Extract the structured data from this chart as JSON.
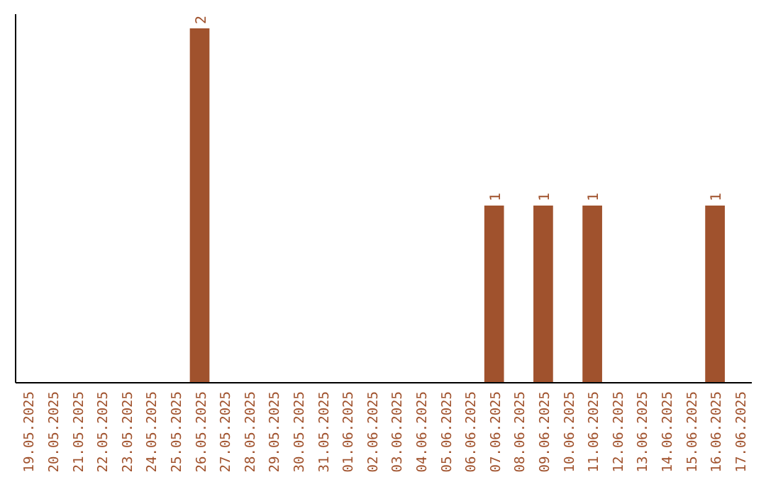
{
  "chart_data": {
    "type": "bar",
    "categories": [
      "19.05.2025",
      "20.05.2025",
      "21.05.2025",
      "22.05.2025",
      "23.05.2025",
      "24.05.2025",
      "25.05.2025",
      "26.05.2025",
      "27.05.2025",
      "28.05.2025",
      "29.05.2025",
      "30.05.2025",
      "31.05.2025",
      "01.06.2025",
      "02.06.2025",
      "03.06.2025",
      "04.06.2025",
      "05.06.2025",
      "06.06.2025",
      "07.06.2025",
      "08.06.2025",
      "09.06.2025",
      "10.06.2025",
      "11.06.2025",
      "12.06.2025",
      "13.06.2025",
      "14.06.2025",
      "15.06.2025",
      "16.06.2025",
      "17.06.2025"
    ],
    "values": [
      0,
      0,
      0,
      0,
      0,
      0,
      0,
      2,
      0,
      0,
      0,
      0,
      0,
      0,
      0,
      0,
      0,
      0,
      0,
      1,
      0,
      1,
      0,
      1,
      0,
      0,
      0,
      0,
      1,
      0
    ],
    "value_labels": [
      null,
      null,
      null,
      null,
      null,
      null,
      null,
      "2",
      null,
      null,
      null,
      null,
      null,
      null,
      null,
      null,
      null,
      null,
      null,
      "1",
      null,
      "1",
      null,
      "1",
      null,
      null,
      null,
      null,
      "1",
      null
    ],
    "color": "#a0522d"
  }
}
